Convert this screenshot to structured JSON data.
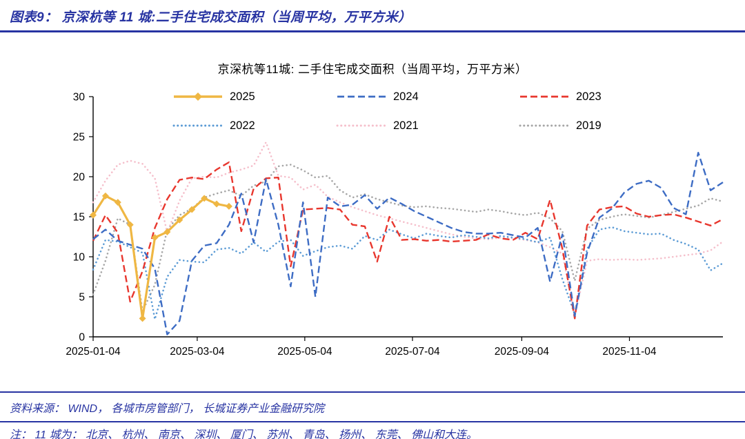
{
  "header": {
    "title": "图表9：  京深杭等 11 城:二手住宅成交面积（当周平均，万平方米）"
  },
  "chart_data": {
    "type": "line",
    "title": "京深杭等11城: 二手住宅成交面积（当周平均，万平方米）",
    "ylabel": "",
    "xlabel": "",
    "ylim": [
      0,
      30
    ],
    "y_ticks": [
      0,
      5,
      10,
      15,
      20,
      25,
      30
    ],
    "x_unit": "weeks since Jan 4 (weekly average)",
    "x_weeks_total": 51,
    "grid": false,
    "legend_position": "top-inside",
    "x_ticks": [
      {
        "label": "2025-01-04",
        "week": 0
      },
      {
        "label": "2025-03-04",
        "week": 8.43
      },
      {
        "label": "2025-05-04",
        "week": 17.14
      },
      {
        "label": "2025-07-04",
        "week": 25.86
      },
      {
        "label": "2025-09-04",
        "week": 34.71
      },
      {
        "label": "2025-11-04",
        "week": 43.43
      }
    ],
    "series": [
      {
        "name": "2025",
        "color": "#EFB743",
        "style": "solid",
        "marker": "diamond",
        "width": 3.2,
        "values": [
          15.2,
          17.6,
          16.8,
          14.0,
          2.3,
          12.4,
          13.1,
          14.6,
          15.9,
          17.3,
          16.6,
          16.3
        ]
      },
      {
        "name": "2024",
        "color": "#3D6CC4",
        "style": "dash",
        "marker": "none",
        "width": 2.4,
        "values": [
          12.2,
          13.4,
          12.0,
          11.5,
          11.0,
          8.5,
          0.3,
          2.0,
          9.5,
          11.4,
          11.7,
          14.0,
          17.9,
          11.8,
          19.7,
          14.0,
          6.3,
          16.8,
          5.0,
          17.4,
          16.3,
          16.5,
          17.7,
          16.0,
          17.4,
          16.6,
          15.7,
          15.0,
          14.3,
          13.6,
          13.1,
          12.9,
          12.9,
          13.0,
          12.7,
          12.4,
          13.6,
          6.9,
          12.8,
          2.6,
          10.5,
          14.9,
          16.0,
          18.0,
          19.1,
          19.5,
          18.6,
          16.1,
          15.3,
          23.0,
          18.3,
          19.3
        ]
      },
      {
        "name": "2023",
        "color": "#E8362D",
        "style": "dash",
        "marker": "none",
        "width": 2.4,
        "values": [
          12.0,
          15.2,
          13.0,
          4.4,
          8.2,
          13.6,
          17.2,
          19.6,
          19.9,
          19.7,
          20.9,
          21.8,
          13.2,
          18.5,
          19.8,
          19.9,
          8.8,
          15.9,
          16.0,
          16.1,
          15.9,
          14.0,
          13.8,
          9.4,
          15.0,
          12.1,
          12.2,
          12.0,
          12.1,
          11.9,
          12.0,
          12.1,
          12.8,
          12.3,
          12.1,
          13.0,
          12.2,
          17.1,
          11.0,
          2.3,
          13.9,
          15.9,
          16.2,
          16.3,
          15.4,
          15.0,
          15.2,
          15.3,
          14.9,
          14.4,
          13.9,
          14.7
        ]
      },
      {
        "name": "2022",
        "color": "#5B9BD5",
        "style": "dot",
        "marker": "none",
        "width": 2.6,
        "values": [
          8.4,
          12.1,
          11.9,
          11.2,
          10.5,
          2.2,
          7.5,
          9.6,
          9.4,
          9.3,
          10.9,
          11.1,
          10.4,
          11.8,
          10.6,
          11.9,
          12.1,
          10.1,
          10.7,
          11.2,
          11.4,
          11.0,
          12.6,
          12.1,
          13.4,
          12.8,
          12.3,
          12.9,
          12.6,
          12.4,
          12.7,
          12.5,
          12.3,
          12.6,
          12.4,
          12.2,
          11.8,
          12.4,
          7.2,
          2.8,
          11.0,
          13.4,
          13.7,
          13.2,
          13.0,
          12.8,
          12.9,
          12.1,
          11.6,
          10.9,
          8.3,
          9.2
        ]
      },
      {
        "name": "2021",
        "color": "#F5BFCB",
        "style": "dot",
        "marker": "none",
        "width": 2.6,
        "values": [
          16.8,
          19.5,
          21.5,
          22.0,
          21.6,
          19.8,
          13.0,
          17.0,
          19.8,
          20.0,
          19.9,
          20.5,
          20.9,
          21.4,
          24.3,
          20.1,
          19.9,
          18.4,
          19.0,
          17.5,
          16.8,
          16.2,
          15.7,
          15.2,
          14.8,
          14.4,
          14.0,
          13.6,
          13.2,
          12.8,
          12.5,
          12.3,
          12.2,
          12.4,
          12.3,
          12.1,
          11.8,
          11.2,
          10.4,
          2.6,
          9.5,
          9.7,
          9.6,
          9.7,
          9.6,
          9.7,
          9.8,
          10.0,
          10.2,
          10.4,
          10.8,
          11.9
        ]
      },
      {
        "name": "2019",
        "color": "#A6A6A6",
        "style": "dot",
        "marker": "none",
        "width": 2.6,
        "values": [
          5.3,
          9.5,
          14.8,
          14.0,
          3.2,
          6.5,
          13.4,
          15.2,
          16.0,
          17.4,
          17.9,
          18.3,
          17.6,
          18.9,
          19.4,
          21.3,
          21.5,
          20.8,
          19.9,
          20.1,
          18.3,
          17.4,
          17.8,
          17.2,
          16.8,
          16.4,
          16.2,
          16.3,
          16.1,
          16.0,
          15.8,
          15.6,
          15.9,
          15.7,
          15.4,
          15.2,
          15.5,
          14.8,
          13.2,
          7.0,
          13.5,
          14.6,
          15.0,
          15.3,
          15.1,
          14.9,
          15.2,
          15.6,
          16.0,
          16.4,
          17.3,
          16.9
        ]
      }
    ]
  },
  "footer": {
    "source": "资料来源：  WIND，  各城市房管部门，  长城证券产业金融研究院",
    "note": "注：  11 城为：  北京、 杭州、 南京、 深圳、 厦门、 苏州、 青岛、 扬州、 东莞、 佛山和大连。"
  },
  "colors": {
    "accent_blue": "#2733A2",
    "axis_black": "#000000"
  }
}
